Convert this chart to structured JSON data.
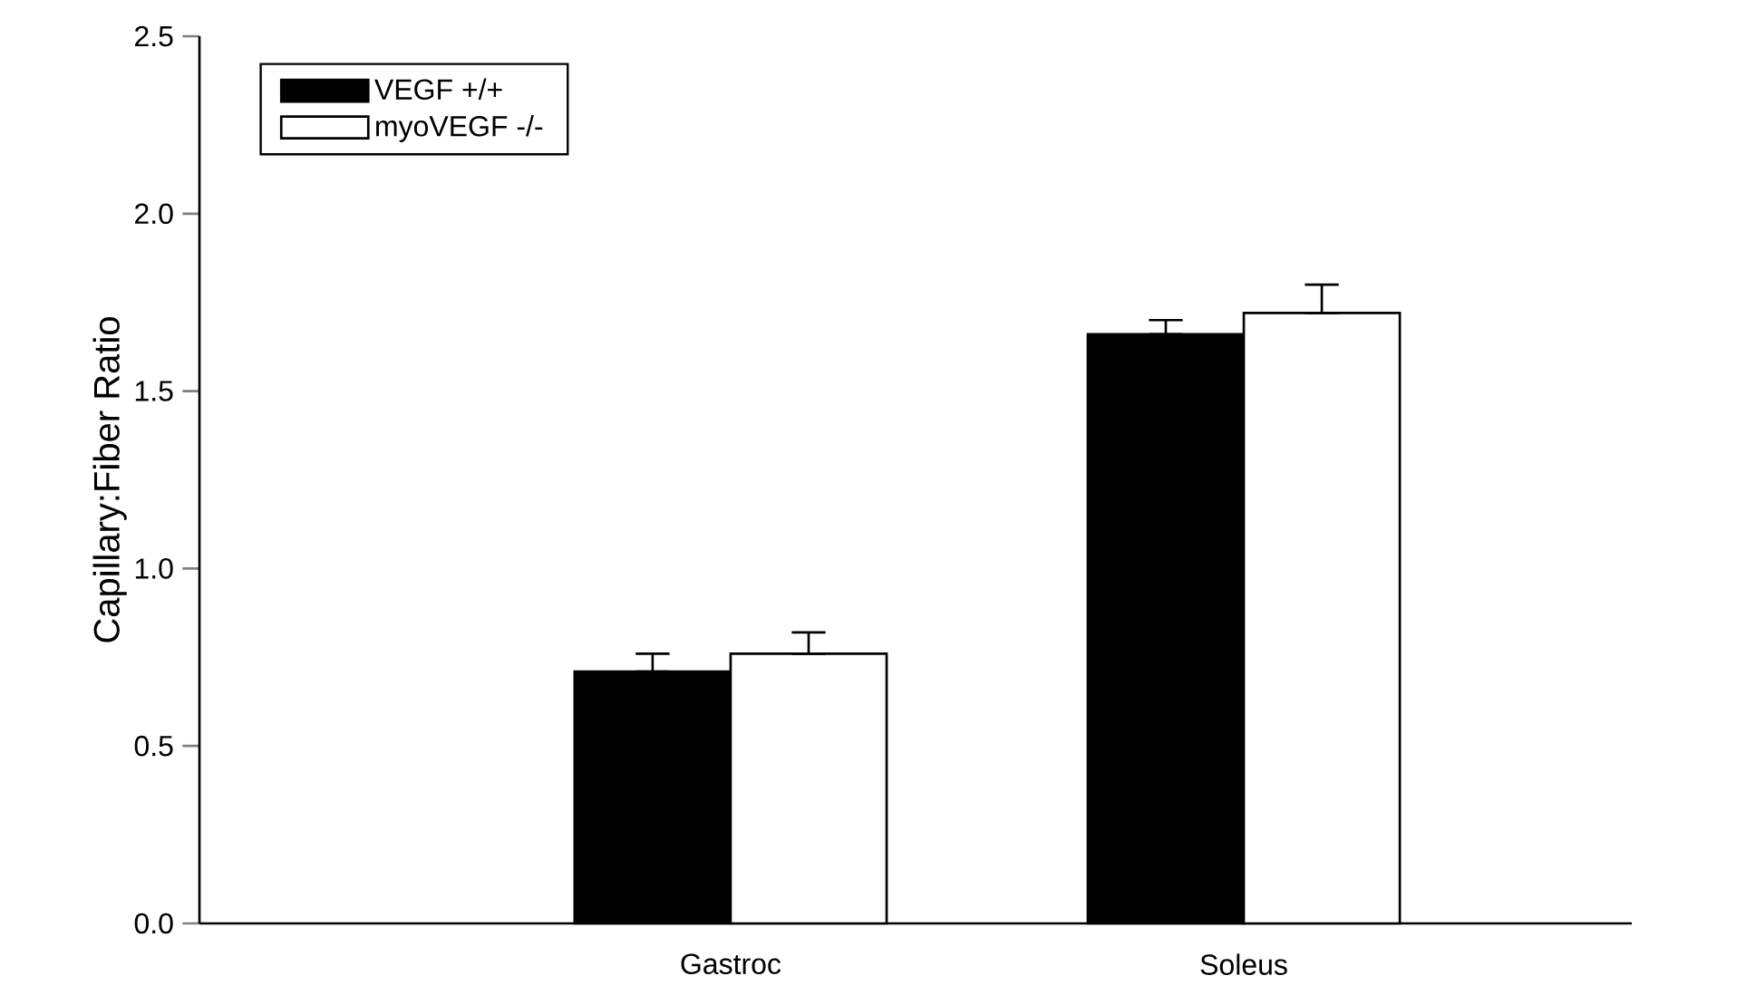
{
  "chart_data": {
    "type": "bar",
    "ylabel": "Capillary:Fiber Ratio",
    "categories": [
      "Gastroc",
      "Soleus"
    ],
    "series": [
      {
        "name": "VEGF +/+",
        "color": "#000000",
        "values": [
          0.71,
          1.66
        ],
        "errors": [
          [
            0.71,
            0.76
          ],
          [
            1.66,
            1.7
          ]
        ]
      },
      {
        "name": "myoVEGF -/-",
        "color": "#ffffff",
        "values": [
          0.76,
          1.72
        ],
        "errors": [
          [
            0.76,
            0.82
          ],
          [
            1.72,
            1.8
          ]
        ]
      }
    ],
    "ylim": [
      0,
      2.5
    ],
    "yticks": [
      {
        "value": 0,
        "label": "0.0"
      },
      0.5,
      {
        "value": 1,
        "label": "1.0"
      },
      1.5,
      {
        "value": 2,
        "label": "2.0"
      },
      2.5
    ],
    "legend": "top left",
    "grid": false
  }
}
